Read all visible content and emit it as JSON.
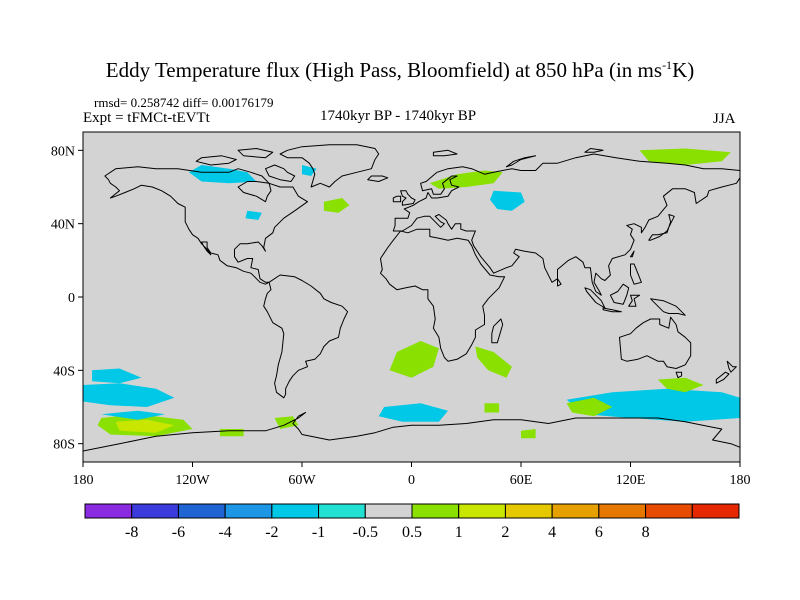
{
  "title": {
    "main": "Eddy Temperature flux (High Pass, Bloomfield) at 850 hPa (in ms",
    "sup": "-1",
    "end": "K)"
  },
  "stats": "rmsd= 0.258742  diff= 0.00176179",
  "experiment": "Expt = tFMCt-tEVTt",
  "period": "1740kyr BP - 1740kyr BP",
  "season": "JJA",
  "map": {
    "projection": "cylindrical-equidistant",
    "background_color": "#d3d3d3",
    "y_ticks": [
      {
        "lat": 80,
        "label": "80N"
      },
      {
        "lat": 40,
        "label": "40N"
      },
      {
        "lat": 0,
        "label": "0"
      },
      {
        "lat": -40,
        "label": "40S"
      },
      {
        "lat": -80,
        "label": "80S"
      }
    ],
    "x_ticks": [
      {
        "lon": -180,
        "label": "180"
      },
      {
        "lon": -120,
        "label": "120W"
      },
      {
        "lon": -60,
        "label": "60W"
      },
      {
        "lon": 0,
        "label": "0"
      },
      {
        "lon": 60,
        "label": "60E"
      },
      {
        "lon": 120,
        "label": "120E"
      },
      {
        "lon": 180,
        "label": "180"
      }
    ]
  },
  "colorbar": {
    "colors": [
      "#8a2be2",
      "#3c3cdc",
      "#1e64d2",
      "#1e96e6",
      "#00c8e6",
      "#22e0d2",
      "#d3d3d3",
      "#8ae000",
      "#c8e600",
      "#e6c800",
      "#e6a000",
      "#e67800",
      "#e64b00",
      "#e62800"
    ],
    "labels": [
      "-8",
      "-6",
      "-4",
      "-2",
      "-1",
      "-0.5",
      "0.5",
      "1",
      "2",
      "4",
      "6",
      "8"
    ]
  },
  "anomaly_regions": [
    {
      "name": "anomaly-canada-neg",
      "color": "#00c8e6",
      "points": [
        [
          -115,
          72
        ],
        [
          -100,
          70
        ],
        [
          -90,
          68
        ],
        [
          -85,
          63
        ],
        [
          -100,
          62
        ],
        [
          -115,
          63
        ],
        [
          -122,
          68
        ]
      ]
    },
    {
      "name": "anomaly-greenland-neg",
      "color": "#00c8e6",
      "points": [
        [
          -60,
          72
        ],
        [
          -52,
          70
        ],
        [
          -55,
          66
        ],
        [
          -60,
          67
        ]
      ]
    },
    {
      "name": "anomaly-n-atlantic-pos",
      "color": "#8ae000",
      "points": [
        [
          -48,
          52
        ],
        [
          -38,
          54
        ],
        [
          -34,
          50
        ],
        [
          -40,
          46
        ],
        [
          -48,
          47
        ]
      ]
    },
    {
      "name": "anomaly-great-lakes-neg",
      "color": "#00c8e6",
      "points": [
        [
          -90,
          47
        ],
        [
          -82,
          46
        ],
        [
          -84,
          42
        ],
        [
          -91,
          43
        ]
      ]
    },
    {
      "name": "anomaly-europe-pos",
      "color": "#8ae000",
      "points": [
        [
          10,
          62
        ],
        [
          25,
          67
        ],
        [
          40,
          69
        ],
        [
          50,
          68
        ],
        [
          45,
          62
        ],
        [
          30,
          60
        ],
        [
          15,
          59
        ]
      ]
    },
    {
      "name": "anomaly-russia-neg",
      "color": "#00c8e6",
      "points": [
        [
          45,
          58
        ],
        [
          60,
          57
        ],
        [
          62,
          52
        ],
        [
          55,
          47
        ],
        [
          47,
          48
        ],
        [
          43,
          53
        ]
      ]
    },
    {
      "name": "anomaly-siberia-pos",
      "color": "#8ae000",
      "points": [
        [
          125,
          80
        ],
        [
          150,
          81
        ],
        [
          175,
          79
        ],
        [
          170,
          74
        ],
        [
          150,
          72
        ],
        [
          130,
          74
        ]
      ]
    },
    {
      "name": "anomaly-s-atlantic-pos",
      "color": "#8ae000",
      "points": [
        [
          -8,
          -30
        ],
        [
          5,
          -24
        ],
        [
          15,
          -28
        ],
        [
          12,
          -38
        ],
        [
          0,
          -44
        ],
        [
          -12,
          -40
        ]
      ]
    },
    {
      "name": "anomaly-s-indian-pos",
      "color": "#8ae000",
      "points": [
        [
          35,
          -27
        ],
        [
          45,
          -30
        ],
        [
          55,
          -38
        ],
        [
          52,
          -44
        ],
        [
          42,
          -40
        ],
        [
          36,
          -33
        ]
      ]
    },
    {
      "name": "anomaly-s-pacific-neg",
      "color": "#00c8e6",
      "points": [
        [
          -180,
          -48
        ],
        [
          -160,
          -47
        ],
        [
          -140,
          -50
        ],
        [
          -130,
          -55
        ],
        [
          -145,
          -60
        ],
        [
          -165,
          -59
        ],
        [
          -180,
          -57
        ]
      ]
    },
    {
      "name": "anomaly-se-pacific-neg",
      "color": "#00c8e6",
      "points": [
        [
          -175,
          -40
        ],
        [
          -160,
          -39
        ],
        [
          -148,
          -44
        ],
        [
          -160,
          -47
        ],
        [
          -175,
          -46
        ]
      ]
    },
    {
      "name": "anomaly-weddell-neg",
      "color": "#00c8e6",
      "points": [
        [
          -15,
          -60
        ],
        [
          5,
          -58
        ],
        [
          20,
          -62
        ],
        [
          15,
          -68
        ],
        [
          -5,
          -68
        ],
        [
          -18,
          -65
        ]
      ]
    },
    {
      "name": "anomaly-s-ocean-120e-neg",
      "color": "#00c8e6",
      "points": [
        [
          85,
          -56
        ],
        [
          110,
          -52
        ],
        [
          140,
          -50
        ],
        [
          170,
          -52
        ],
        [
          180,
          -55
        ],
        [
          180,
          -66
        ],
        [
          150,
          -68
        ],
        [
          120,
          -66
        ],
        [
          95,
          -64
        ]
      ]
    },
    {
      "name": "anomaly-s-ocean-100e-pos",
      "color": "#8ae000",
      "points": [
        [
          85,
          -58
        ],
        [
          100,
          -55
        ],
        [
          110,
          -60
        ],
        [
          100,
          -65
        ],
        [
          88,
          -63
        ]
      ]
    },
    {
      "name": "anomaly-s-ocean-150e-pos",
      "color": "#8ae000",
      "points": [
        [
          135,
          -45
        ],
        [
          150,
          -44
        ],
        [
          160,
          -48
        ],
        [
          150,
          -52
        ],
        [
          140,
          -50
        ]
      ]
    },
    {
      "name": "anomaly-ross-sea-pos",
      "color": "#8ae000",
      "points": [
        [
          -170,
          -66
        ],
        [
          -150,
          -64
        ],
        [
          -125,
          -67
        ],
        [
          -120,
          -72
        ],
        [
          -140,
          -76
        ],
        [
          -165,
          -75
        ],
        [
          -172,
          -70
        ]
      ]
    },
    {
      "name": "anomaly-ross-sea-core",
      "color": "#c8e600",
      "points": [
        [
          -162,
          -68
        ],
        [
          -145,
          -67
        ],
        [
          -130,
          -70
        ],
        [
          -140,
          -74
        ],
        [
          -160,
          -73
        ]
      ]
    },
    {
      "name": "anomaly-amundsen-neg",
      "color": "#00c8e6",
      "points": [
        [
          -170,
          -64
        ],
        [
          -150,
          -62
        ],
        [
          -135,
          -64
        ],
        [
          -150,
          -67
        ]
      ]
    },
    {
      "name": "anomaly-bellingshausen-pos",
      "color": "#8ae000",
      "points": [
        [
          -75,
          -66
        ],
        [
          -65,
          -65
        ],
        [
          -62,
          -70
        ],
        [
          -72,
          -72
        ]
      ]
    },
    {
      "name": "anomaly-drake-pos",
      "color": "#8ae000",
      "points": [
        [
          -105,
          -72
        ],
        [
          -92,
          -72
        ],
        [
          -92,
          -76
        ],
        [
          -105,
          -76
        ]
      ]
    },
    {
      "name": "anomaly-e-antarctic-pos",
      "color": "#8ae000",
      "points": [
        [
          60,
          -73
        ],
        [
          68,
          -72
        ],
        [
          68,
          -77
        ],
        [
          60,
          -77
        ]
      ]
    },
    {
      "name": "anomaly-s-indian-small-pos",
      "color": "#8ae000",
      "points": [
        [
          40,
          -58
        ],
        [
          48,
          -58
        ],
        [
          48,
          -63
        ],
        [
          40,
          -63
        ]
      ]
    }
  ]
}
